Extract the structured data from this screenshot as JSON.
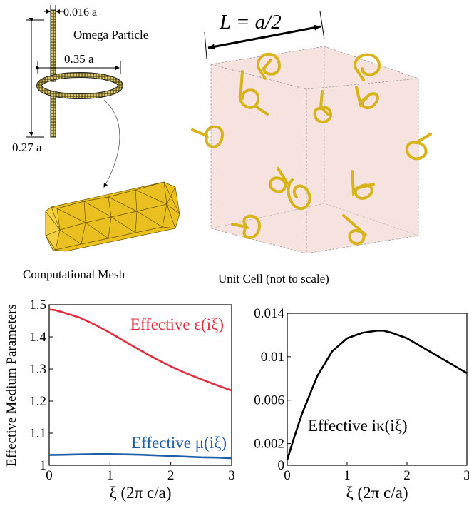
{
  "figure": {
    "omega": {
      "thickness_label": "0.016 a",
      "title": "Omega Particle",
      "diameter_label": "0.35 a",
      "height_label": "0.27 a"
    },
    "mesh_caption": "Computational Mesh",
    "cell": {
      "length_label": "L = a/2",
      "caption": "Unit Cell (not to scale)"
    }
  },
  "colors": {
    "eps": "#e03040",
    "mu": "#1f5fa8",
    "kappa": "#000000",
    "gold": "#d8b41c",
    "goldDark": "#a8860c",
    "cube": "#f3d9d4"
  },
  "chart_data": [
    {
      "type": "line",
      "ylabel": "Effective Medium Parameters",
      "xlabel": "ξ (2π c/a)",
      "xlim": [
        0,
        3
      ],
      "ylim": [
        1.0,
        1.5
      ],
      "xticks": [
        "0",
        "1",
        "2",
        "3"
      ],
      "yticks": [
        "1",
        "1.1",
        "1.2",
        "1.3",
        "1.4",
        "1.5"
      ],
      "series": [
        {
          "name": "Effective ε(iξ)",
          "x": [
            0,
            0.1,
            0.25,
            0.5,
            0.75,
            1.0,
            1.25,
            1.5,
            1.75,
            2.0,
            2.25,
            2.5,
            2.75,
            3.0
          ],
          "y": [
            1.485,
            1.483,
            1.475,
            1.46,
            1.438,
            1.413,
            1.385,
            1.358,
            1.332,
            1.308,
            1.287,
            1.268,
            1.25,
            1.233
          ]
        },
        {
          "name": "Effective μ(iξ)",
          "x": [
            0,
            0.25,
            0.5,
            0.75,
            1.0,
            1.25,
            1.5,
            1.75,
            2.0,
            2.25,
            2.5,
            2.75,
            3.0
          ],
          "y": [
            1.032,
            1.033,
            1.034,
            1.035,
            1.035,
            1.034,
            1.033,
            1.031,
            1.029,
            1.027,
            1.025,
            1.024,
            1.022
          ]
        }
      ]
    },
    {
      "type": "line",
      "xlabel": "ξ (2π c/a)",
      "xlim": [
        0,
        3
      ],
      "ylim": [
        0,
        0.014
      ],
      "xticks": [
        "0",
        "1",
        "2",
        "3"
      ],
      "yticks": [
        "0",
        "0.002",
        "0.006",
        "0.01",
        "0.014"
      ],
      "series": [
        {
          "name": "Effective iκ(iξ)",
          "x": [
            0,
            0.1,
            0.25,
            0.5,
            0.75,
            1.0,
            1.25,
            1.5,
            1.6,
            1.75,
            2.0,
            2.25,
            2.5,
            2.75,
            3.0
          ],
          "y": [
            0.0005,
            0.0023,
            0.0048,
            0.0082,
            0.0105,
            0.0117,
            0.0122,
            0.0124,
            0.0124,
            0.0122,
            0.0117,
            0.0109,
            0.0101,
            0.0093,
            0.0085
          ]
        }
      ]
    }
  ]
}
